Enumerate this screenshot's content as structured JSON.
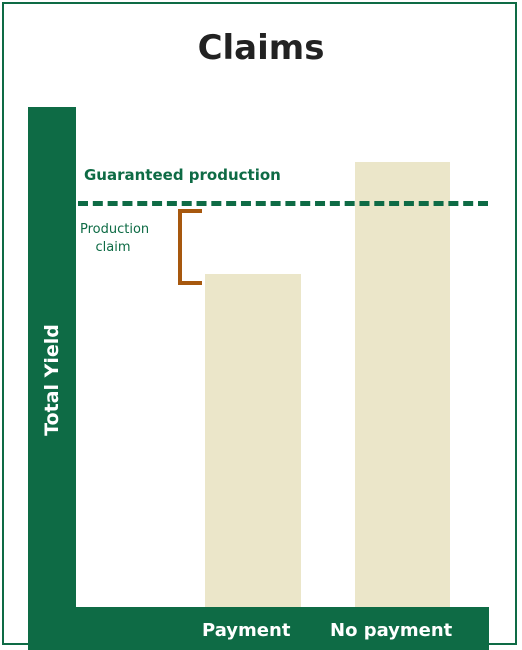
{
  "title": "Claims",
  "y_axis_label": "Total Yield",
  "guarantee_label": "Guaranteed production",
  "claim_label": {
    "line1": "Production",
    "line2": "claim"
  },
  "chart_data": {
    "type": "bar",
    "categories": [
      "Payment",
      "No payment"
    ],
    "values": [
      68,
      91
    ],
    "guaranteed_production": 85,
    "ylim": [
      0,
      100
    ],
    "title": "Claims",
    "ylabel": "Total Yield",
    "xlabel": "",
    "annotations": [
      "Guaranteed production",
      "Production claim"
    ]
  },
  "colors": {
    "accent": "#0e6b45",
    "bar": "#ebe6c9",
    "bracket": "#a7580e"
  }
}
